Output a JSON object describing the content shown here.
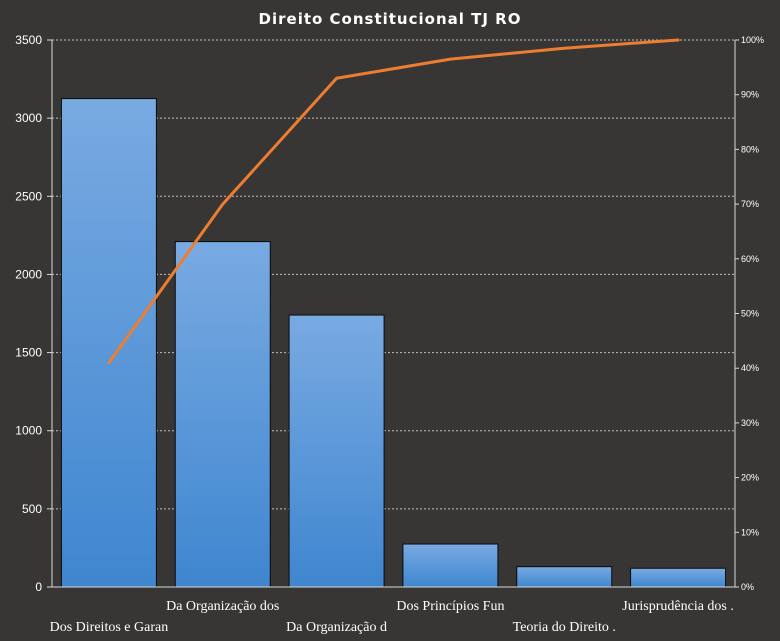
{
  "chart_data": {
    "type": "bar",
    "title": "Direito Constitucional TJ RO",
    "xlabel": "",
    "ylabel": "",
    "categories": [
      "Dos Direitos e Garan",
      "Da Organização dos",
      "Da Organização d",
      "Dos Princípios Fun",
      "Teoria do Direito .",
      "Jurisprudência dos ."
    ],
    "series": [
      {
        "type": "bar",
        "values": [
          3125,
          2210,
          1740,
          275,
          130,
          120
        ]
      },
      {
        "type": "line",
        "axis": "secondary",
        "values": [
          41,
          70,
          93,
          96.5,
          98.5,
          100
        ]
      }
    ],
    "ylim": [
      0,
      3500
    ],
    "yticks": [
      "0",
      "500",
      "1000",
      "1500",
      "2000",
      "2500",
      "3000",
      "3500"
    ],
    "y2lim": [
      0,
      100
    ],
    "y2ticks": [
      "0%",
      "10%",
      "20%",
      "30%",
      "40%",
      "50%",
      "60%",
      "70%",
      "80%",
      "90%",
      "100%"
    ],
    "grid": true,
    "legend": "none",
    "colors": {
      "background": "#383634",
      "bar_top": "#79aae2",
      "bar_bottom": "#3f86cf",
      "bar_stroke": "#0a0a0a",
      "line": "#ed7d31",
      "grid": "#bfbfbf",
      "axis": "#d9d9d9",
      "text": "#ffffff"
    }
  }
}
